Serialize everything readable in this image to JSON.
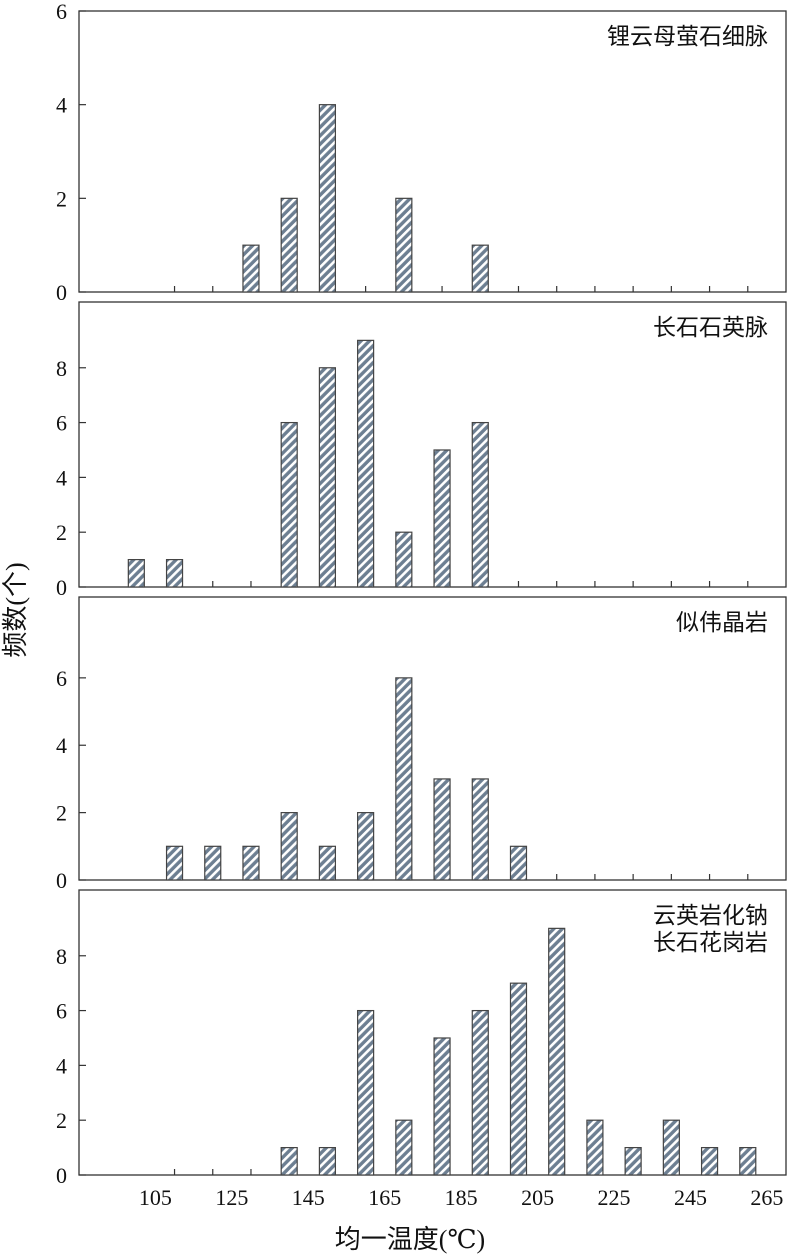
{
  "figure": {
    "xlabel": "均一温度(℃)",
    "ylabel": "频数(个)",
    "x_ticks": [
      105,
      125,
      145,
      165,
      185,
      205,
      225,
      245,
      265
    ],
    "bar_color": "#6d7f92",
    "bar_stripe_color": "#ffffff"
  },
  "chart_data": [
    {
      "type": "bar",
      "title": [
        "锂云母萤石细脉"
      ],
      "x": [
        130,
        140,
        150,
        170,
        190
      ],
      "values": [
        1,
        2,
        4,
        2,
        1
      ],
      "xlim": [
        85,
        270
      ],
      "ylim": [
        0,
        6
      ],
      "y_ticks": [
        0,
        2,
        4,
        6
      ],
      "grid": false
    },
    {
      "type": "bar",
      "title": [
        "长石石英脉"
      ],
      "x": [
        100,
        110,
        140,
        150,
        160,
        170,
        180,
        190
      ],
      "values": [
        1,
        1,
        6,
        8,
        9,
        2,
        5,
        6
      ],
      "xlim": [
        85,
        270
      ],
      "ylim": [
        0,
        10.4
      ],
      "y_ticks": [
        0,
        2,
        4,
        6,
        8
      ],
      "grid": false
    },
    {
      "type": "bar",
      "title": [
        "似伟晶岩"
      ],
      "x": [
        110,
        120,
        130,
        140,
        150,
        160,
        170,
        180,
        190,
        200
      ],
      "values": [
        1,
        1,
        1,
        2,
        1,
        2,
        6,
        3,
        3,
        1
      ],
      "xlim": [
        85,
        270
      ],
      "ylim": [
        0,
        8.4
      ],
      "y_ticks": [
        0,
        2,
        4,
        6
      ],
      "grid": false
    },
    {
      "type": "bar",
      "title": [
        "云英岩化钠",
        "长石花岗岩"
      ],
      "x": [
        140,
        150,
        160,
        170,
        180,
        190,
        200,
        210,
        220,
        230,
        240,
        250,
        260
      ],
      "values": [
        1,
        1,
        6,
        2,
        5,
        6,
        7,
        9,
        2,
        1,
        2,
        1,
        1
      ],
      "xlim": [
        85,
        270
      ],
      "ylim": [
        0,
        10.4
      ],
      "y_ticks": [
        0,
        2,
        4,
        6,
        8
      ],
      "grid": false
    }
  ]
}
